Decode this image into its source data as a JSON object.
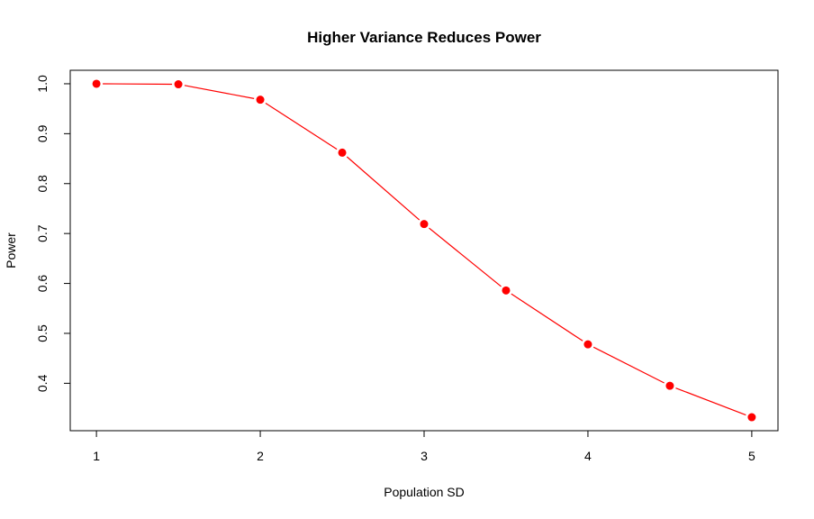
{
  "chart_data": {
    "type": "line",
    "title": "Higher Variance Reduces Power",
    "xlabel": "Population SD",
    "ylabel": "Power",
    "x": [
      1,
      1.5,
      2,
      2.5,
      3,
      3.5,
      4,
      4.5,
      5
    ],
    "series": [
      {
        "name": "Power",
        "values": [
          1.0,
          0.999,
          0.968,
          0.862,
          0.719,
          0.586,
          0.478,
          0.395,
          0.332
        ],
        "color": "#ff0000"
      }
    ],
    "xticks": [
      "1",
      "2",
      "3",
      "4",
      "5"
    ],
    "yticks": [
      "0.4",
      "0.5",
      "0.6",
      "0.7",
      "0.8",
      "0.9",
      "1.0"
    ],
    "xlim": [
      0.84,
      5.16
    ],
    "ylim": [
      0.305,
      1.027
    ],
    "grid": false,
    "colors": {
      "line": "#ff0000",
      "points": "#ff0000",
      "axis": "#000000"
    }
  }
}
